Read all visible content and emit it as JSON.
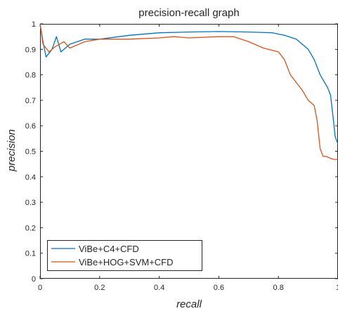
{
  "chart_data": {
    "type": "line",
    "title": "precision-recall graph",
    "xlabel": "recall",
    "ylabel": "precision",
    "xlim": [
      0,
      1
    ],
    "ylim": [
      0,
      1
    ],
    "xticks": [
      "0",
      "0.2",
      "0.4",
      "0.6",
      "0.8",
      "1"
    ],
    "yticks": [
      "0",
      "0.1",
      "0.2",
      "0.3",
      "0.4",
      "0.5",
      "0.6",
      "0.7",
      "0.8",
      "0.9",
      "1"
    ],
    "grid": false,
    "legend_position": "bottom-left",
    "series": [
      {
        "name": "ViBe+C4+CFD",
        "color": "#0072BD",
        "x": [
          0.0,
          0.01,
          0.02,
          0.04,
          0.055,
          0.07,
          0.1,
          0.15,
          0.2,
          0.3,
          0.4,
          0.5,
          0.6,
          0.7,
          0.78,
          0.82,
          0.86,
          0.9,
          0.92,
          0.94,
          0.955,
          0.965,
          0.975,
          0.985,
          0.99,
          0.993,
          0.996,
          1.0
        ],
        "y": [
          1.0,
          0.93,
          0.87,
          0.9,
          0.95,
          0.89,
          0.92,
          0.94,
          0.94,
          0.955,
          0.965,
          0.968,
          0.97,
          0.968,
          0.965,
          0.955,
          0.94,
          0.9,
          0.86,
          0.8,
          0.77,
          0.75,
          0.72,
          0.62,
          0.56,
          0.55,
          0.54,
          0.53
        ]
      },
      {
        "name": "ViBe+HOG+SVM+CFD",
        "color": "#D95319",
        "x": [
          0.0,
          0.01,
          0.03,
          0.05,
          0.08,
          0.1,
          0.15,
          0.2,
          0.3,
          0.4,
          0.45,
          0.5,
          0.6,
          0.65,
          0.7,
          0.75,
          0.8,
          0.82,
          0.84,
          0.86,
          0.88,
          0.9,
          0.92,
          0.93,
          0.94,
          0.95,
          0.96,
          0.97,
          0.98,
          0.99,
          1.0
        ],
        "y": [
          1.0,
          0.92,
          0.89,
          0.91,
          0.93,
          0.905,
          0.93,
          0.94,
          0.94,
          0.945,
          0.95,
          0.945,
          0.95,
          0.95,
          0.93,
          0.905,
          0.89,
          0.86,
          0.8,
          0.77,
          0.74,
          0.7,
          0.68,
          0.62,
          0.51,
          0.48,
          0.48,
          0.475,
          0.47,
          0.468,
          0.467
        ]
      }
    ]
  }
}
